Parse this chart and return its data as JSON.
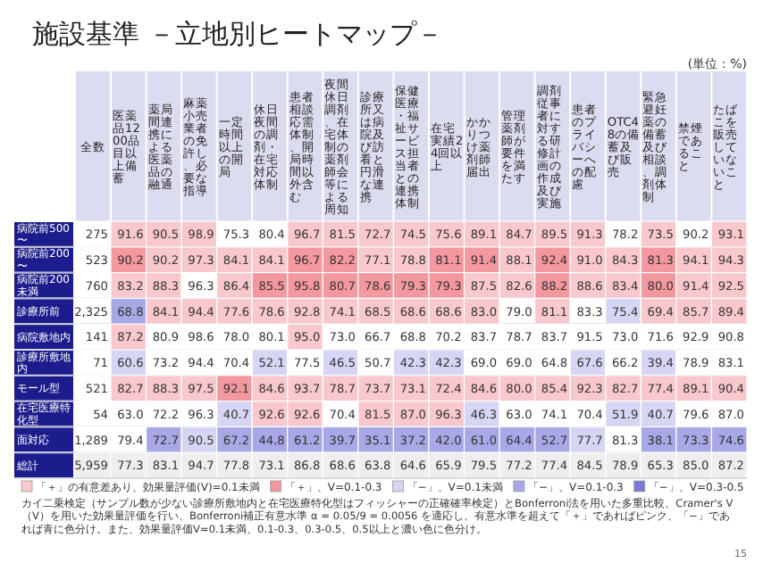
{
  "chart_data": {
    "type": "heatmap",
    "title": "施設基準 －立地別ヒートマップ－",
    "subtitle": "(単位：%)",
    "categories": [
      "全数",
      "医薬品1200品目以上備蓄",
      "薬局間連携による医薬品の融通",
      "麻薬小売業者の免許し、必要な指導",
      "一定時間以上の開局",
      "休日夜間の調剤・在宅対応体制",
      "患者相談応需体制、開局時間以外含む",
      "夜間休日調剤、在宅体制の薬剤師会等による周知",
      "診療所又は病院及び訪看と円滑な連携",
      "保健医療・福祉サービス担当者との連携体制",
      "在宅実績24回以上",
      "かかりつけ薬剤師届出",
      "管理薬剤師が要件を満たす",
      "調剤従事者に対する研修計画の作成及び実施",
      "患者のプライバシーへの配慮",
      "OTC48の備蓄及び販売",
      "緊急避妊薬の備蓄及び相談、調剤体制",
      "禁煙であること",
      "たばこを販売していないこと"
    ],
    "y_categories": [
      "病院前500〜",
      "病院前200〜",
      "病院前200未満",
      "診療所前",
      "病院敷地内",
      "診療所敷地内",
      "モール型",
      "在宅医療特化型",
      "面対応",
      "総計"
    ],
    "cells": [
      [
        275,
        91.6,
        90.5,
        98.9,
        75.3,
        80.4,
        96.7,
        81.5,
        72.7,
        74.5,
        75.6,
        89.1,
        84.7,
        89.5,
        91.3,
        78.2,
        73.5,
        90.2,
        93.1
      ],
      [
        523,
        90.2,
        90.2,
        97.3,
        84.1,
        84.1,
        96.7,
        82.2,
        77.1,
        78.8,
        81.1,
        91.4,
        88.1,
        92.4,
        91.0,
        84.3,
        81.3,
        94.1,
        94.3
      ],
      [
        760,
        83.2,
        88.3,
        96.3,
        86.4,
        85.5,
        95.8,
        80.7,
        78.6,
        79.3,
        79.3,
        87.5,
        82.6,
        88.2,
        88.6,
        83.4,
        80.0,
        91.4,
        92.5
      ],
      [
        2325,
        68.8,
        84.1,
        94.4,
        77.6,
        78.6,
        92.8,
        74.1,
        68.5,
        68.6,
        68.6,
        83.0,
        79.0,
        81.1,
        83.3,
        75.4,
        69.4,
        85.7,
        89.4
      ],
      [
        141,
        87.2,
        80.9,
        98.6,
        78.0,
        80.1,
        95.0,
        73.0,
        66.7,
        68.8,
        70.2,
        83.7,
        78.7,
        83.7,
        91.5,
        73.0,
        71.6,
        92.9,
        90.8
      ],
      [
        71,
        60.6,
        73.2,
        94.4,
        70.4,
        52.1,
        77.5,
        46.5,
        50.7,
        42.3,
        42.3,
        69.0,
        69.0,
        64.8,
        67.6,
        66.2,
        39.4,
        78.9,
        83.1
      ],
      [
        521,
        82.7,
        88.3,
        97.5,
        92.1,
        84.6,
        93.7,
        78.7,
        73.7,
        73.1,
        72.4,
        84.6,
        80.0,
        85.4,
        92.3,
        82.7,
        77.4,
        89.1,
        90.4
      ],
      [
        54,
        63.0,
        72.2,
        96.3,
        40.7,
        92.6,
        92.6,
        70.4,
        81.5,
        87.0,
        96.3,
        46.3,
        63.0,
        74.1,
        70.4,
        51.9,
        40.7,
        79.6,
        87.0
      ],
      [
        1289,
        79.4,
        72.7,
        90.5,
        67.2,
        44.8,
        61.2,
        39.7,
        35.1,
        37.2,
        42.0,
        61.0,
        64.4,
        52.7,
        77.7,
        81.3,
        38.1,
        73.3,
        74.6
      ],
      [
        5959,
        77.3,
        83.1,
        94.7,
        77.8,
        73.1,
        86.8,
        68.6,
        63.8,
        64.6,
        65.9,
        79.5,
        77.2,
        77.4,
        84.5,
        78.9,
        65.3,
        85.0,
        87.2
      ]
    ],
    "cell_labels": [
      [
        "275",
        "91.6",
        "90.5",
        "98.9",
        "75.3",
        "80.4",
        "96.7",
        "81.5",
        "72.7",
        "74.5",
        "75.6",
        "89.1",
        "84.7",
        "89.5",
        "91.3",
        "78.2",
        "73.5",
        "90.2",
        "93.1"
      ],
      [
        "523",
        "90.2",
        "90.2",
        "97.3",
        "84.1",
        "84.1",
        "96.7",
        "82.2",
        "77.1",
        "78.8",
        "81.1",
        "91.4",
        "88.1",
        "92.4",
        "91.0",
        "84.3",
        "81.3",
        "94.1",
        "94.3"
      ],
      [
        "760",
        "83.2",
        "88.3",
        "96.3",
        "86.4",
        "85.5",
        "95.8",
        "80.7",
        "78.6",
        "79.3",
        "79.3",
        "87.5",
        "82.6",
        "88.2",
        "88.6",
        "83.4",
        "80.0",
        "91.4",
        "92.5"
      ],
      [
        "2,325",
        "68.8",
        "84.1",
        "94.4",
        "77.6",
        "78.6",
        "92.8",
        "74.1",
        "68.5",
        "68.6",
        "68.6",
        "83.0",
        "79.0",
        "81.1",
        "83.3",
        "75.4",
        "69.4",
        "85.7",
        "89.4"
      ],
      [
        "141",
        "87.2",
        "80.9",
        "98.6",
        "78.0",
        "80.1",
        "95.0",
        "73.0",
        "66.7",
        "68.8",
        "70.2",
        "83.7",
        "78.7",
        "83.7",
        "91.5",
        "73.0",
        "71.6",
        "92.9",
        "90.8"
      ],
      [
        "71",
        "60.6",
        "73.2",
        "94.4",
        "70.4",
        "52.1",
        "77.5",
        "46.5",
        "50.7",
        "42.3",
        "42.3",
        "69.0",
        "69.0",
        "64.8",
        "67.6",
        "66.2",
        "39.4",
        "78.9",
        "83.1"
      ],
      [
        "521",
        "82.7",
        "88.3",
        "97.5",
        "92.1",
        "84.6",
        "93.7",
        "78.7",
        "73.7",
        "73.1",
        "72.4",
        "84.6",
        "80.0",
        "85.4",
        "92.3",
        "82.7",
        "77.4",
        "89.1",
        "90.4"
      ],
      [
        "54",
        "63.0",
        "72.2",
        "96.3",
        "40.7",
        "92.6",
        "92.6",
        "70.4",
        "81.5",
        "87.0",
        "96.3",
        "46.3",
        "63.0",
        "74.1",
        "70.4",
        "51.9",
        "40.7",
        "79.6",
        "87.0"
      ],
      [
        "1,289",
        "79.4",
        "72.7",
        "90.5",
        "67.2",
        "44.8",
        "61.2",
        "39.7",
        "35.1",
        "37.2",
        "42.0",
        "61.0",
        "64.4",
        "52.7",
        "77.7",
        "81.3",
        "38.1",
        "73.3",
        "74.6"
      ],
      [
        "5,959",
        "77.3",
        "83.1",
        "94.7",
        "77.8",
        "73.1",
        "86.8",
        "68.6",
        "63.8",
        "64.6",
        "65.9",
        "79.5",
        "77.2",
        "77.4",
        "84.5",
        "78.9",
        "65.3",
        "85.0",
        "87.2"
      ]
    ],
    "colors": [
      [
        "#ffffff",
        "#f8c8cc",
        "#f8c8cc",
        "#f8c8cc",
        "#ffffff",
        "#ffffff",
        "#f8c8cc",
        "#f8c8cc",
        "#f8c8cc",
        "#f8c8cc",
        "#f8c8cc",
        "#f8c8cc",
        "#f8c8cc",
        "#f8c8cc",
        "#f8c8cc",
        "#ffffff",
        "#f8c8cc",
        "#ffffff",
        "#f8c8cc"
      ],
      [
        "#ffffff",
        "#f2989e",
        "#f8c8cc",
        "#f8c8cc",
        "#f8c8cc",
        "#f8c8cc",
        "#f2989e",
        "#f2989e",
        "#f8c8cc",
        "#f8c8cc",
        "#f2989e",
        "#f2989e",
        "#f8c8cc",
        "#f2989e",
        "#f8c8cc",
        "#f8c8cc",
        "#f2989e",
        "#f8c8cc",
        "#f8c8cc"
      ],
      [
        "#ffffff",
        "#f8c8cc",
        "#f8c8cc",
        "#ffffff",
        "#f8c8cc",
        "#f2989e",
        "#f2989e",
        "#f2989e",
        "#f2989e",
        "#f2989e",
        "#f2989e",
        "#f8c8cc",
        "#f8c8cc",
        "#f2989e",
        "#f8c8cc",
        "#f8c8cc",
        "#f2989e",
        "#f8c8cc",
        "#f8c8cc"
      ],
      [
        "#ffffff",
        "#a8a8e6",
        "#f8c8cc",
        "#f8c8cc",
        "#f8c8cc",
        "#f8c8cc",
        "#f8c8cc",
        "#f8c8cc",
        "#f8c8cc",
        "#f8c8cc",
        "#f8c8cc",
        "#f8c8cc",
        "#ffffff",
        "#f8c8cc",
        "#ffffff",
        "#d6d6f4",
        "#f8c8cc",
        "#f8c8cc",
        "#f8c8cc"
      ],
      [
        "#ffffff",
        "#f8c8cc",
        "#ffffff",
        "#ffffff",
        "#ffffff",
        "#ffffff",
        "#f8c8cc",
        "#ffffff",
        "#ffffff",
        "#ffffff",
        "#ffffff",
        "#ffffff",
        "#ffffff",
        "#ffffff",
        "#ffffff",
        "#ffffff",
        "#ffffff",
        "#ffffff",
        "#ffffff"
      ],
      [
        "#ffffff",
        "#d6d6f4",
        "#ffffff",
        "#ffffff",
        "#ffffff",
        "#d6d6f4",
        "#ffffff",
        "#d6d6f4",
        "#ffffff",
        "#d6d6f4",
        "#d6d6f4",
        "#ffffff",
        "#ffffff",
        "#ffffff",
        "#d6d6f4",
        "#ffffff",
        "#d6d6f4",
        "#ffffff",
        "#ffffff"
      ],
      [
        "#ffffff",
        "#f8c8cc",
        "#f8c8cc",
        "#f8c8cc",
        "#f2989e",
        "#f8c8cc",
        "#f8c8cc",
        "#f8c8cc",
        "#f8c8cc",
        "#f8c8cc",
        "#f8c8cc",
        "#f8c8cc",
        "#f8c8cc",
        "#f8c8cc",
        "#f8c8cc",
        "#f8c8cc",
        "#f8c8cc",
        "#f8c8cc",
        "#f8c8cc"
      ],
      [
        "#ffffff",
        "#ffffff",
        "#ffffff",
        "#ffffff",
        "#d6d6f4",
        "#f8c8cc",
        "#f8c8cc",
        "#ffffff",
        "#f8c8cc",
        "#f8c8cc",
        "#f8c8cc",
        "#d6d6f4",
        "#ffffff",
        "#ffffff",
        "#ffffff",
        "#d6d6f4",
        "#d6d6f4",
        "#ffffff",
        "#ffffff"
      ],
      [
        "#ffffff",
        "#ffffff",
        "#a8a8e6",
        "#d6d6f4",
        "#a8a8e6",
        "#a8a8e6",
        "#a8a8e6",
        "#a8a8e6",
        "#a8a8e6",
        "#a8a8e6",
        "#a8a8e6",
        "#a8a8e6",
        "#a8a8e6",
        "#a8a8e6",
        "#d6d6f4",
        "#ffffff",
        "#a8a8e6",
        "#a8a8e6",
        "#a8a8e6"
      ],
      [
        "#eeeeee",
        "#eeeeee",
        "#eeeeee",
        "#eeeeee",
        "#eeeeee",
        "#eeeeee",
        "#eeeeee",
        "#eeeeee",
        "#eeeeee",
        "#eeeeee",
        "#eeeeee",
        "#eeeeee",
        "#eeeeee",
        "#eeeeee",
        "#eeeeee",
        "#eeeeee",
        "#eeeeee",
        "#eeeeee",
        "#eeeeee"
      ]
    ],
    "annotations": [
      "「＋」の有意差あり、効果量評価(V)=0.1未満",
      "「＋」、V=0.1-0.3",
      "「−」、V=0.1未満",
      "「−」、V=0.1-0.3",
      "「−」、V=0.3-0.5",
      "カイ二乗検定（サンプル数が少ない診療所敷地内と在宅医療特化型はフィッシャーの正確確率検定）とBonferroni法を用いた多重比較、Cramer's V（V）を用いた効果量評価を行い、Bonferroni補正有意水準 α = 0.05/9 = 0.0056 を適応し、有意水準を超えて「＋」であればピンク、「−」であれば青に色分け。また、効果量評価V=0.1未満、0.1-0.3、0.3-0.5、0.5以上と濃い色に色分け。",
      "15"
    ]
  }
}
